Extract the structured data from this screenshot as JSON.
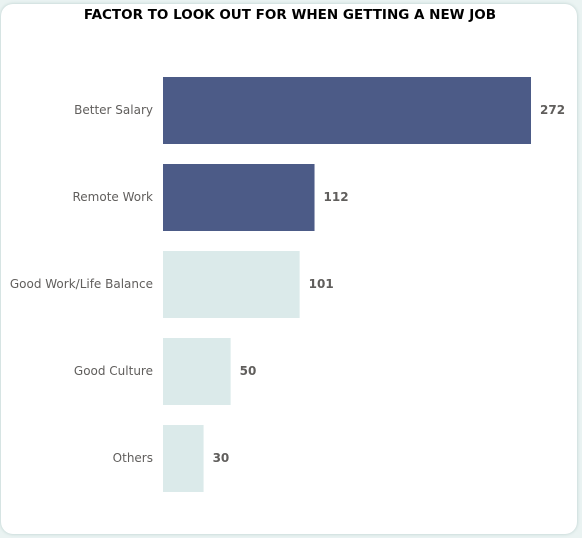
{
  "chart_data": {
    "type": "bar",
    "orientation": "horizontal",
    "title": "FACTOR TO LOOK OUT FOR WHEN GETTING A NEW JOB",
    "categories": [
      "Better Salary",
      "Remote Work",
      "Good Work/Life Balance",
      "Good Culture",
      "Others"
    ],
    "values": [
      272,
      112,
      101,
      50,
      30
    ],
    "colors": [
      "#4c5b87",
      "#4c5b87",
      "#dbeaea",
      "#dbeaea",
      "#dbeaea"
    ],
    "xlim": [
      0,
      272
    ],
    "grid": false,
    "legend": "none"
  }
}
